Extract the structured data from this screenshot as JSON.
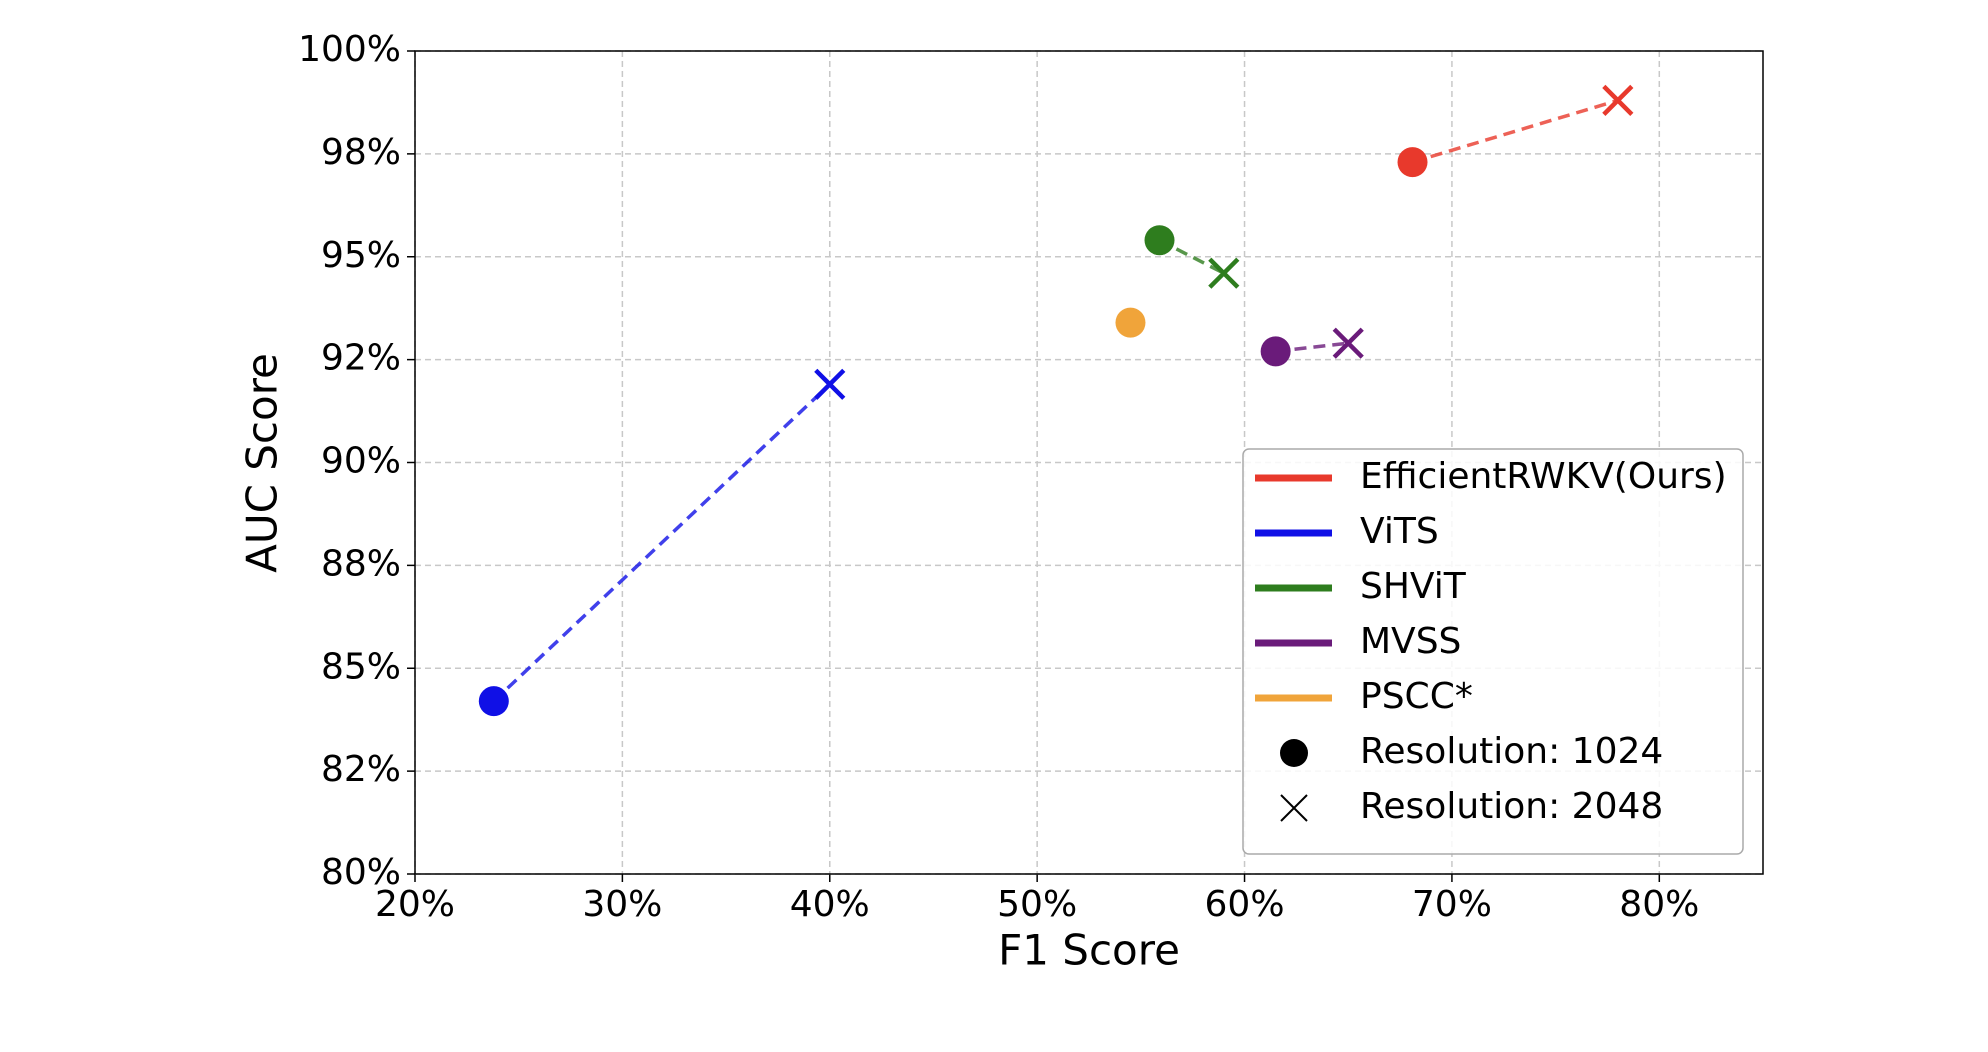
{
  "chart_data": {
    "type": "scatter",
    "xlabel": "F1 Score",
    "ylabel": "AUC Score",
    "xlim": [
      20,
      85
    ],
    "ylim": [
      80,
      100
    ],
    "xticks": [
      {
        "value": 20,
        "label": "20%"
      },
      {
        "value": 30,
        "label": "30%"
      },
      {
        "value": 40,
        "label": "40%"
      },
      {
        "value": 50,
        "label": "50%"
      },
      {
        "value": 60,
        "label": "60%"
      },
      {
        "value": 70,
        "label": "70%"
      },
      {
        "value": 80,
        "label": "80%"
      }
    ],
    "yticks": [
      {
        "value": 80,
        "label": "80%"
      },
      {
        "value": 82.5,
        "label": "82%"
      },
      {
        "value": 85,
        "label": "85%"
      },
      {
        "value": 87.5,
        "label": "88%"
      },
      {
        "value": 90,
        "label": "90%"
      },
      {
        "value": 92.5,
        "label": "92%"
      },
      {
        "value": 95,
        "label": "95%"
      },
      {
        "value": 97.5,
        "label": "98%"
      },
      {
        "value": 100,
        "label": "100%"
      }
    ],
    "grid": true,
    "legend": "lower right",
    "series": [
      {
        "name": "EfficientRWKV(Ours)",
        "color": "#e8392c",
        "x": [
          68.1,
          78
        ],
        "values": [
          97.3,
          98.8
        ],
        "markers": [
          "o",
          "x"
        ]
      },
      {
        "name": "ViTS",
        "color": "#1010e6",
        "x": [
          23.8,
          40
        ],
        "values": [
          84.2,
          91.9
        ],
        "markers": [
          "o",
          "x"
        ]
      },
      {
        "name": "SHViT",
        "color": "#2e7d1e",
        "x": [
          55.9,
          59
        ],
        "values": [
          95.4,
          94.6
        ],
        "markers": [
          "o",
          "x"
        ]
      },
      {
        "name": "MVSS",
        "color": "#6a1b7a",
        "x": [
          61.5,
          65
        ],
        "values": [
          92.7,
          92.9
        ],
        "markers": [
          "o",
          "x"
        ]
      },
      {
        "name": "PSCC*",
        "color": "#f0a43a",
        "x": [
          54.5
        ],
        "values": [
          93.4
        ],
        "markers": [
          "o"
        ]
      }
    ],
    "marker_legend": [
      {
        "label": "Resolution: 1024",
        "marker": "o"
      },
      {
        "label": "Resolution: 2048",
        "marker": "x"
      }
    ]
  }
}
